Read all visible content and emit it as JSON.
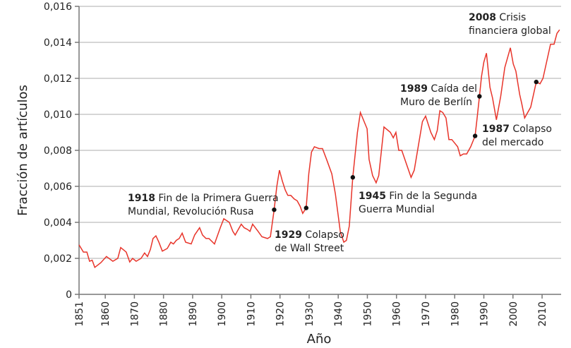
{
  "chart_data": {
    "type": "line",
    "xlabel": "Año",
    "ylabel": "Fracción de artículos",
    "xlim": [
      1851,
      2016
    ],
    "ylim": [
      0,
      0.016
    ],
    "x_ticks": [
      "1851",
      "1860",
      "1870",
      "1880",
      "1890",
      "1900",
      "1910",
      "1920",
      "1930",
      "1940",
      "1950",
      "1960",
      "1970",
      "1980",
      "1990",
      "2000",
      "2010"
    ],
    "y_ticks": [
      "0",
      "0,002",
      "0,004",
      "0,006",
      "0,008",
      "0,010",
      "0,012",
      "0,014",
      "0,016"
    ],
    "grid": true,
    "line_color": "#e8342a",
    "series": [
      {
        "points": [
          [
            1851,
            0.00275
          ],
          [
            1852.5,
            0.00235
          ],
          [
            1853.7,
            0.00235
          ],
          [
            1854.6,
            0.00184
          ],
          [
            1855.5,
            0.0019
          ],
          [
            1856.4,
            0.0015
          ],
          [
            1858.5,
            0.00176
          ],
          [
            1860.4,
            0.0021
          ],
          [
            1862.6,
            0.00184
          ],
          [
            1864.3,
            0.002
          ],
          [
            1865.3,
            0.0026
          ],
          [
            1867.2,
            0.00235
          ],
          [
            1868.4,
            0.0018
          ],
          [
            1869.4,
            0.002
          ],
          [
            1870.6,
            0.00184
          ],
          [
            1872.3,
            0.002
          ],
          [
            1873.5,
            0.0023
          ],
          [
            1874.5,
            0.0021
          ],
          [
            1875.5,
            0.0025
          ],
          [
            1876.4,
            0.0031
          ],
          [
            1877.4,
            0.00325
          ],
          [
            1878.4,
            0.0029
          ],
          [
            1879.6,
            0.0024
          ],
          [
            1881.3,
            0.00255
          ],
          [
            1882.5,
            0.0029
          ],
          [
            1883.4,
            0.0028
          ],
          [
            1884.4,
            0.003
          ],
          [
            1885.4,
            0.0031
          ],
          [
            1886.4,
            0.0034
          ],
          [
            1887.6,
            0.0029
          ],
          [
            1889.5,
            0.0028
          ],
          [
            1890.7,
            0.0033
          ],
          [
            1892.4,
            0.0037
          ],
          [
            1893.4,
            0.0033
          ],
          [
            1894.6,
            0.0031
          ],
          [
            1895.6,
            0.0031
          ],
          [
            1897.5,
            0.0028
          ],
          [
            1899.5,
            0.0037
          ],
          [
            1900.7,
            0.0042
          ],
          [
            1902.6,
            0.004
          ],
          [
            1903.8,
            0.0035
          ],
          [
            1904.6,
            0.0033
          ],
          [
            1906.7,
            0.0039
          ],
          [
            1907.7,
            0.0037
          ],
          [
            1908.9,
            0.0036
          ],
          [
            1909.7,
            0.0035
          ],
          [
            1910.6,
            0.0039
          ],
          [
            1912.5,
            0.0035
          ],
          [
            1913.8,
            0.0032
          ],
          [
            1915.7,
            0.0031
          ],
          [
            1916.7,
            0.0032
          ],
          [
            1918,
            0.0047
          ],
          [
            1918.9,
            0.006
          ],
          [
            1919.8,
            0.0069
          ],
          [
            1920.8,
            0.0063
          ],
          [
            1921.8,
            0.0058
          ],
          [
            1922.7,
            0.0055
          ],
          [
            1923.7,
            0.0055
          ],
          [
            1924.9,
            0.0053
          ],
          [
            1925.9,
            0.0052
          ],
          [
            1926.9,
            0.0049
          ],
          [
            1927.8,
            0.0045
          ],
          [
            1929,
            0.0048
          ],
          [
            1929.9,
            0.0067
          ],
          [
            1930.8,
            0.0079
          ],
          [
            1931.8,
            0.0082
          ],
          [
            1933.4,
            0.0081
          ],
          [
            1934.6,
            0.0081
          ],
          [
            1936,
            0.0075
          ],
          [
            1937.8,
            0.0067
          ],
          [
            1939,
            0.0056
          ],
          [
            1940.7,
            0.0035
          ],
          [
            1941.9,
            0.0029
          ],
          [
            1942.8,
            0.003
          ],
          [
            1943.8,
            0.0038
          ],
          [
            1945,
            0.0065
          ],
          [
            1946.6,
            0.009
          ],
          [
            1947.6,
            0.0101
          ],
          [
            1949.9,
            0.0092
          ],
          [
            1950.6,
            0.0075
          ],
          [
            1951.8,
            0.0066
          ],
          [
            1953,
            0.0062
          ],
          [
            1953.9,
            0.0066
          ],
          [
            1955.7,
            0.0093
          ],
          [
            1957.9,
            0.009
          ],
          [
            1958.9,
            0.0087
          ],
          [
            1959.8,
            0.009
          ],
          [
            1960.8,
            0.008
          ],
          [
            1961.8,
            0.008
          ],
          [
            1965,
            0.0065
          ],
          [
            1966.1,
            0.0069
          ],
          [
            1968.9,
            0.0096
          ],
          [
            1970,
            0.0099
          ],
          [
            1971.8,
            0.009
          ],
          [
            1973,
            0.0086
          ],
          [
            1974,
            0.0091
          ],
          [
            1974.9,
            0.0102
          ],
          [
            1975.9,
            0.0101
          ],
          [
            1977,
            0.0098
          ],
          [
            1978,
            0.0086
          ],
          [
            1979,
            0.0086
          ],
          [
            1980,
            0.0084
          ],
          [
            1981,
            0.0082
          ],
          [
            1981.9,
            0.0077
          ],
          [
            1983,
            0.0078
          ],
          [
            1984.1,
            0.0078
          ],
          [
            1985.5,
            0.0082
          ],
          [
            1987,
            0.0088
          ],
          [
            1987.7,
            0.0098
          ],
          [
            1988.5,
            0.011
          ],
          [
            1989.2,
            0.0121
          ],
          [
            1990,
            0.0129
          ],
          [
            1990.9,
            0.0134
          ],
          [
            1992.1,
            0.0115
          ],
          [
            1993,
            0.0109
          ],
          [
            1994.3,
            0.0097
          ],
          [
            1995.8,
            0.011
          ],
          [
            1997.2,
            0.0126
          ],
          [
            1999.1,
            0.0137
          ],
          [
            2000.1,
            0.0128
          ],
          [
            2001,
            0.0124
          ],
          [
            2002.3,
            0.0111
          ],
          [
            2003,
            0.0106
          ],
          [
            2004,
            0.0098
          ],
          [
            2006.1,
            0.0104
          ],
          [
            2008,
            0.0118
          ],
          [
            2009.3,
            0.0117
          ],
          [
            2010.3,
            0.012
          ],
          [
            2012.9,
            0.0139
          ],
          [
            2014.1,
            0.0139
          ],
          [
            2015.1,
            0.0145
          ],
          [
            2016,
            0.0147
          ]
        ]
      }
    ],
    "annotations": [
      {
        "x": 1918,
        "y": 0.0047,
        "year": "1918",
        "line1": "Fin de la Primera Guerra",
        "line2": "Mundial, Revolución Rusa"
      },
      {
        "x": 1929,
        "y": 0.0048,
        "year": "1929",
        "line1": "Colapso",
        "line2": "de Wall Street"
      },
      {
        "x": 1945,
        "y": 0.0065,
        "year": "1945",
        "line1": "Fin de la Segunda",
        "line2": "Guerra Mundial"
      },
      {
        "x": 1988.5,
        "y": 0.011,
        "year": "1989",
        "line1": "Caída del",
        "line2": "Muro de Berlín"
      },
      {
        "x": 1987,
        "y": 0.0088,
        "year": "1987",
        "line1": "Colapso",
        "line2": "del mercado"
      },
      {
        "x": 2008,
        "y": 0.0118,
        "year": "2008",
        "line1": "Crisis",
        "line2": "financiera global"
      }
    ]
  }
}
